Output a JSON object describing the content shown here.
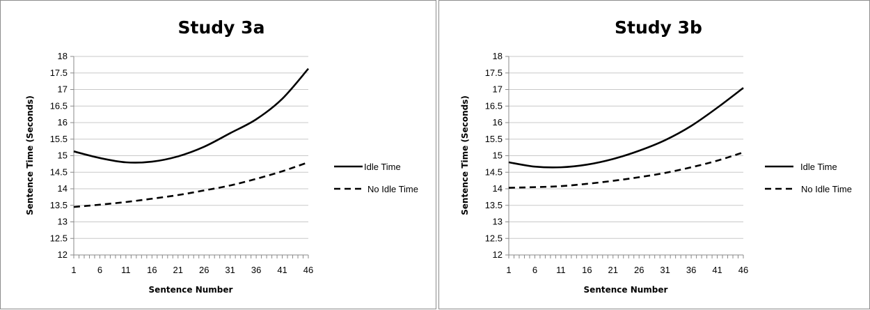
{
  "chart_data": [
    {
      "type": "line",
      "title": "Study 3a",
      "xlabel": "Sentence Number",
      "ylabel": "Sentence Time (Seconds)",
      "ylim": [
        12,
        18
      ],
      "yticks": [
        "12",
        "12.5",
        "13",
        "13.5",
        "14",
        "14.5",
        "15",
        "15.5",
        "16",
        "16.5",
        "17",
        "17.5",
        "18"
      ],
      "xticks": [
        "1",
        "6",
        "11",
        "16",
        "21",
        "26",
        "31",
        "36",
        "41",
        "46"
      ],
      "xlim": [
        1,
        46
      ],
      "legend_position": "right",
      "grid": true,
      "series": [
        {
          "name": "Idle Time",
          "style": "solid",
          "x": [
            1,
            6,
            11,
            16,
            21,
            26,
            31,
            36,
            41,
            46
          ],
          "values": [
            15.13,
            14.93,
            14.8,
            14.82,
            14.98,
            15.27,
            15.68,
            16.1,
            16.72,
            17.63
          ]
        },
        {
          "name": "No Idle Time",
          "style": "dashed",
          "x": [
            1,
            6,
            11,
            16,
            21,
            26,
            31,
            36,
            41,
            46
          ],
          "values": [
            13.45,
            13.52,
            13.6,
            13.7,
            13.81,
            13.95,
            14.1,
            14.3,
            14.53,
            14.8
          ]
        }
      ]
    },
    {
      "type": "line",
      "title": "Study 3b",
      "xlabel": "Sentence Number",
      "ylabel": "Sentence Time (Seconds)",
      "ylim": [
        12,
        18
      ],
      "yticks": [
        "12",
        "12.5",
        "13",
        "13.5",
        "14",
        "14.5",
        "15",
        "15.5",
        "16",
        "16.5",
        "17",
        "17.5",
        "18"
      ],
      "xticks": [
        "1",
        "6",
        "11",
        "16",
        "21",
        "26",
        "31",
        "36",
        "41",
        "46"
      ],
      "xlim": [
        1,
        46
      ],
      "legend_position": "right",
      "grid": true,
      "series": [
        {
          "name": "Idle Time",
          "style": "solid",
          "x": [
            1,
            6,
            11,
            16,
            21,
            26,
            31,
            36,
            41,
            46
          ],
          "values": [
            14.8,
            14.67,
            14.65,
            14.73,
            14.9,
            15.15,
            15.47,
            15.9,
            16.45,
            17.05
          ]
        },
        {
          "name": "No Idle Time",
          "style": "dashed",
          "x": [
            1,
            6,
            11,
            16,
            21,
            26,
            31,
            36,
            41,
            46
          ],
          "values": [
            14.03,
            14.05,
            14.08,
            14.15,
            14.24,
            14.35,
            14.48,
            14.65,
            14.85,
            15.1
          ]
        }
      ]
    }
  ]
}
